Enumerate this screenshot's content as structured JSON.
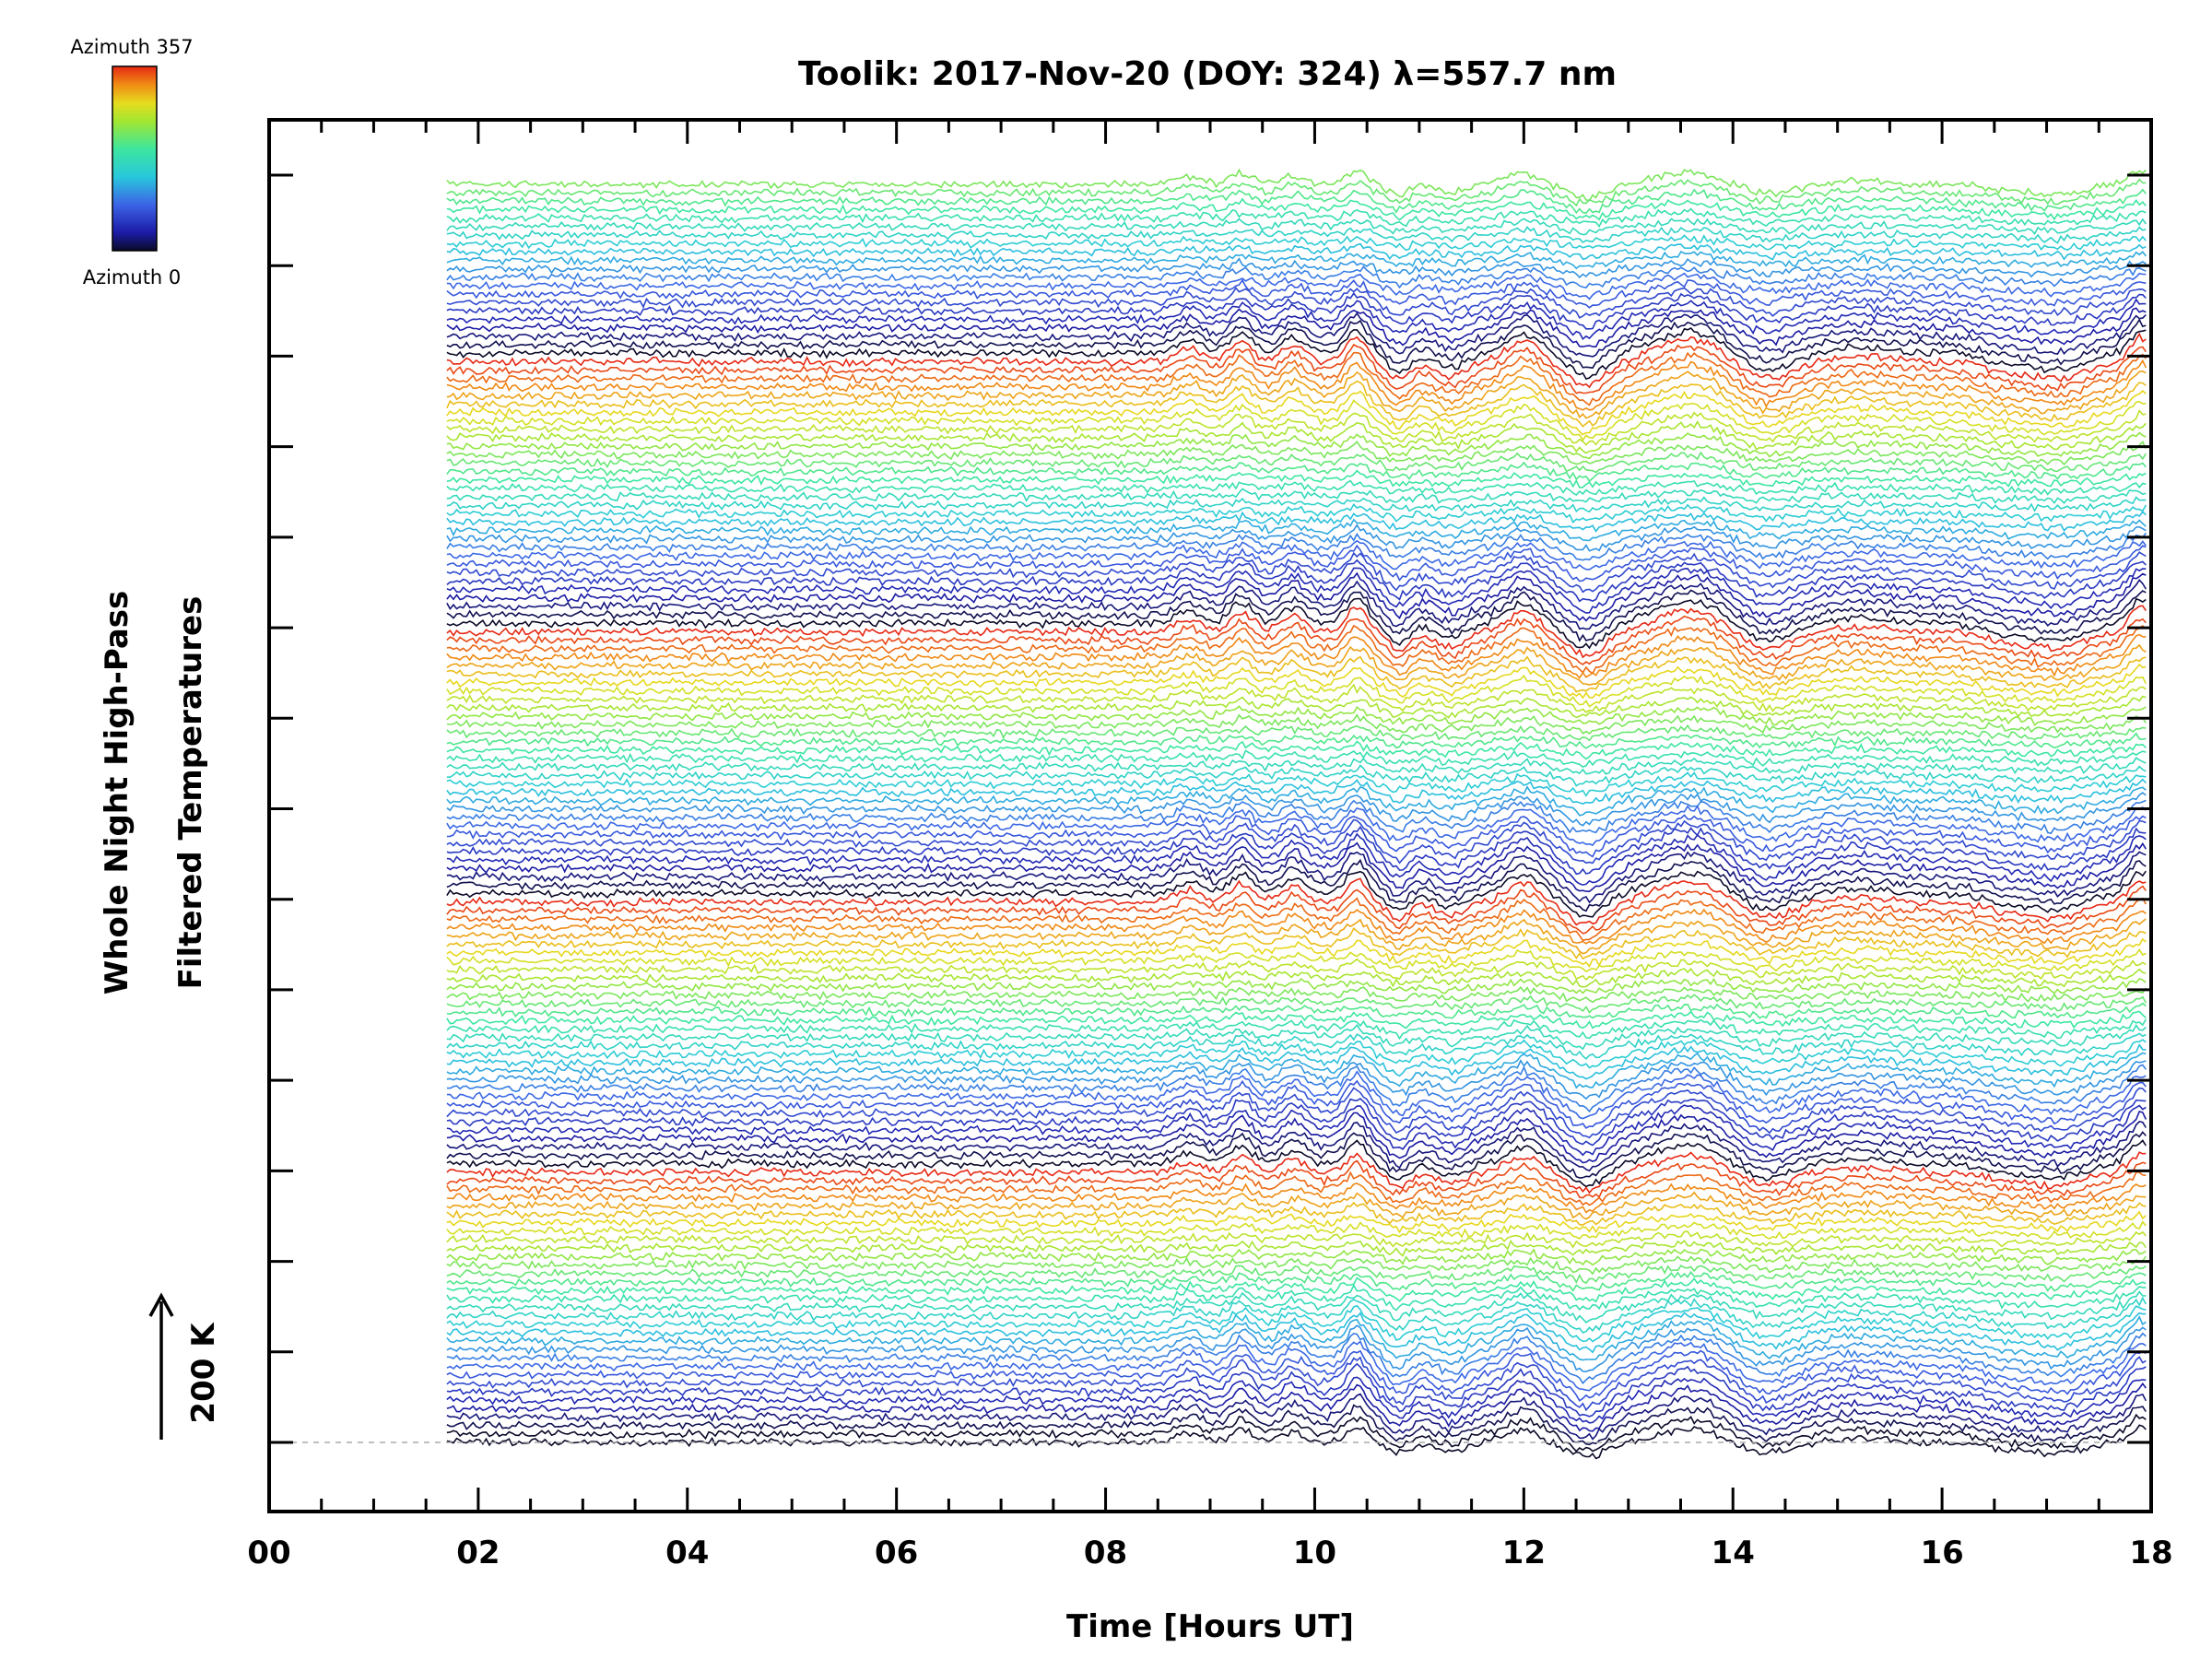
{
  "chart_data": {
    "type": "line",
    "title": "Toolik: 2017-Nov-20 (DOY: 324) λ=557.7 nm",
    "xlabel": "Time [Hours UT]",
    "ylabel_line1": "Whole Night High-Pass",
    "ylabel_line2": "Filtered Temperatures",
    "xlim": [
      0,
      18
    ],
    "x_tick_labels": [
      "00",
      "02",
      "04",
      "06",
      "08",
      "10",
      "12",
      "14",
      "16",
      "18"
    ],
    "x_minor_step_hours": 0.5,
    "y_major_ticks_count": 15,
    "scale_bar_label": "200 K",
    "data_start_hour": 1.7,
    "data_end_hour": 17.95,
    "colorbar": {
      "top_label": "Azimuth 357",
      "bottom_label": "Azimuth 0",
      "colormap": "rainbow"
    },
    "baseline_style": "dashed grey",
    "series_count": 150,
    "azimuth_cycle_length": 32,
    "colors": {
      "background": "#ffffff",
      "axes": "#000000",
      "baseline": "#aaaaaa",
      "colormap_stops": [
        "#0a0a28",
        "#1c1ca8",
        "#3c64e6",
        "#28c8dc",
        "#3ce6a0",
        "#a0e632",
        "#e6dc1e",
        "#f08c14",
        "#e62814"
      ]
    },
    "feature_hours": [
      8.8,
      9.3,
      9.8,
      10.4,
      10.8,
      11.3,
      12.0,
      12.6,
      13.6,
      14.3,
      15.2,
      16.6,
      17.1,
      17.9
    ]
  }
}
